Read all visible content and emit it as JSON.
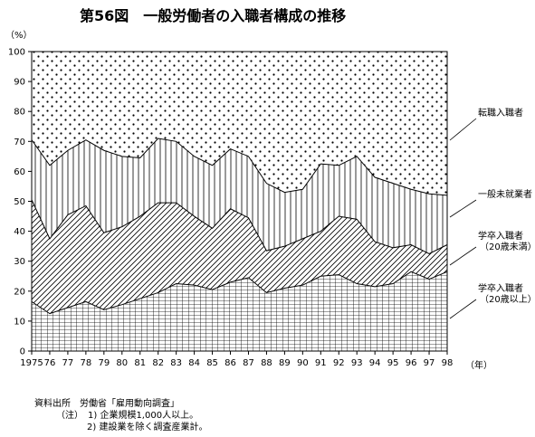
{
  "chart_data": {
    "type": "area",
    "title": "第56図　一般労働者の入職者構成の推移",
    "ylabel": "（%）",
    "xlabel": "（年）",
    "ylim": [
      0,
      100
    ],
    "yticks": [
      0,
      10,
      20,
      30,
      40,
      50,
      60,
      70,
      80,
      90,
      100
    ],
    "x": [
      1975,
      1976,
      1977,
      1978,
      1979,
      1980,
      1981,
      1982,
      1983,
      1984,
      1985,
      1986,
      1987,
      1988,
      1989,
      1990,
      1991,
      1992,
      1993,
      1994,
      1995,
      1996,
      1997,
      1998
    ],
    "xtick_labels": [
      "1975",
      "76",
      "77",
      "78",
      "79",
      "80",
      "81",
      "82",
      "83",
      "84",
      "85",
      "86",
      "87",
      "88",
      "89",
      "90",
      "91",
      "92",
      "93",
      "94",
      "95",
      "96",
      "97",
      "98"
    ],
    "stacked": true,
    "series": [
      {
        "name": "学卒入職者\n（20歳以上）",
        "pattern": "grid",
        "cumulative": [
          16.5,
          12.5,
          14.5,
          16.5,
          13.8,
          15.5,
          17.5,
          19.5,
          22.5,
          22.0,
          20.5,
          23.0,
          24.5,
          19.5,
          21.0,
          22.0,
          25.0,
          25.5,
          22.5,
          21.5,
          22.5,
          26.5,
          24.0,
          26.5
        ]
      },
      {
        "name": "学卒入職者\n（20歳未満）",
        "pattern": "diagonal",
        "cumulative": [
          50.5,
          37.5,
          45.5,
          48.5,
          39.5,
          41.5,
          45.0,
          49.5,
          49.5,
          45.0,
          41.0,
          47.5,
          44.5,
          33.5,
          35.0,
          37.5,
          40.0,
          45.0,
          44.0,
          36.5,
          34.5,
          35.5,
          32.5,
          35.5
        ]
      },
      {
        "name": "一般未就業者",
        "pattern": "vertical",
        "cumulative": [
          70.5,
          62.0,
          67.0,
          70.5,
          67.0,
          65.0,
          64.5,
          71.0,
          70.0,
          65.0,
          62.0,
          67.5,
          65.0,
          56.0,
          53.0,
          54.0,
          62.5,
          62.0,
          65.0,
          58.0,
          56.0,
          54.0,
          52.5,
          52.0
        ]
      },
      {
        "name": "転職入職者",
        "pattern": "dots",
        "cumulative": [
          100,
          100,
          100,
          100,
          100,
          100,
          100,
          100,
          100,
          100,
          100,
          100,
          100,
          100,
          100,
          100,
          100,
          100,
          100,
          100,
          100,
          100,
          100,
          100
        ]
      }
    ],
    "grid": false,
    "legend": "right"
  },
  "notes": {
    "source": "資料出所　労働省「雇用動向調査」",
    "note1": "（注）　1) 企業規模1,000人以上。",
    "note2": "2) 建設業を除く調査産業計。"
  }
}
